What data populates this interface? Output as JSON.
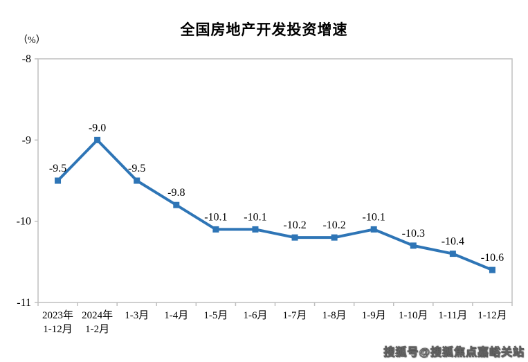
{
  "page": {
    "title": "全国房地产开发投资增速",
    "unit_label": "（%）",
    "watermark": "搜狐号@搜狐焦点嘉峪关站"
  },
  "chart_data": {
    "type": "line",
    "title": "全国房地产开发投资增速",
    "ylabel": "（%）",
    "categories": [
      [
        "2023年",
        "1-12月"
      ],
      [
        "2024年",
        "1-2月"
      ],
      [
        "1-3月"
      ],
      [
        "1-4月"
      ],
      [
        "1-5月"
      ],
      [
        "1-6月"
      ],
      [
        "1-7月"
      ],
      [
        "1-8月"
      ],
      [
        "1-9月"
      ],
      [
        "1-10月"
      ],
      [
        "1-11月"
      ],
      [
        "1-12月"
      ]
    ],
    "values": [
      -9.5,
      -9.0,
      -9.5,
      -9.8,
      -10.1,
      -10.1,
      -10.2,
      -10.2,
      -10.1,
      -10.3,
      -10.4,
      -10.6
    ],
    "data_labels": [
      "-9.5",
      "-9.0",
      "-9.5",
      "-9.8",
      "-10.1",
      "-10.1",
      "-10.2",
      "-10.2",
      "-10.1",
      "-10.3",
      "-10.4",
      "-10.6"
    ],
    "ylim": [
      -11,
      -8
    ],
    "yticks": [
      -8,
      -9,
      -10,
      -11
    ],
    "grid": false,
    "legend": "none",
    "line_color": "#2E75B6",
    "marker": "square",
    "marker_size": 9,
    "axis_color": "#BFBFBF",
    "text_color": "#000000"
  }
}
